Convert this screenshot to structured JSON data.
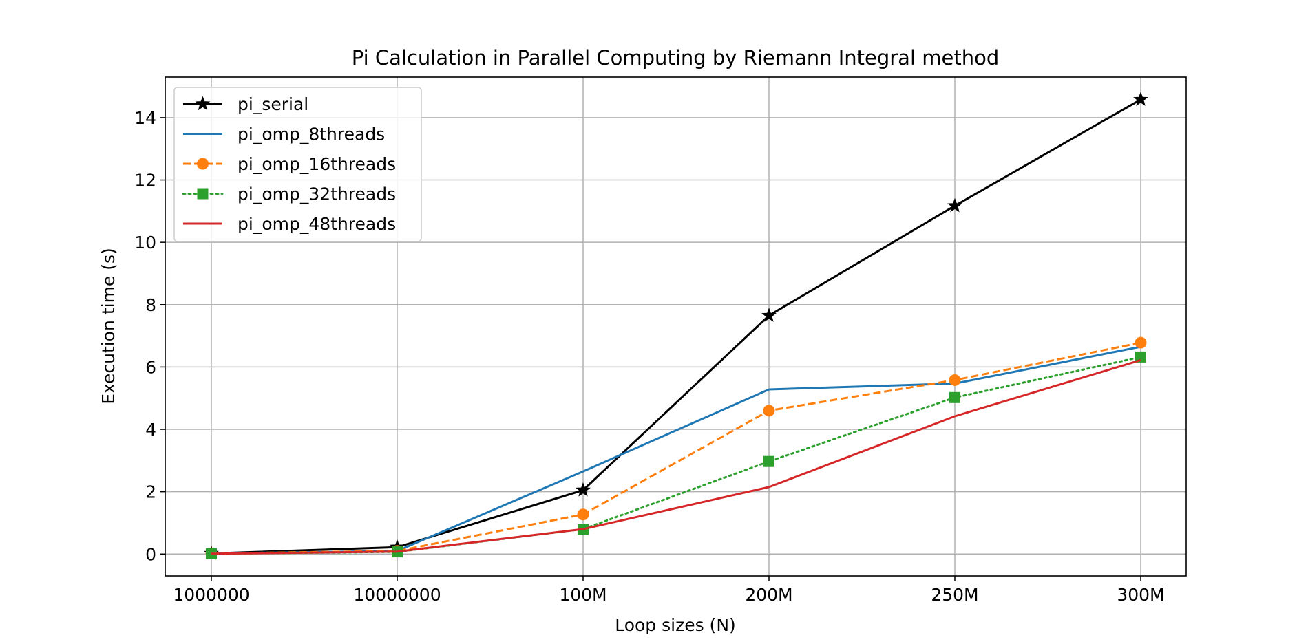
{
  "chart_data": {
    "type": "line",
    "title": "Pi Calculation in Parallel Computing by Riemann Integral method",
    "xlabel": "Loop sizes (N)",
    "ylabel": "Execution time (s)",
    "categories": [
      "1000000",
      "10000000",
      "100M",
      "200M",
      "250M",
      "300M"
    ],
    "yticks": [
      "0",
      "2",
      "4",
      "6",
      "8",
      "10",
      "12",
      "14"
    ],
    "ylim": [
      -0.7,
      15.3
    ],
    "grid": true,
    "legend_position": "top-left",
    "series": [
      {
        "name": "pi_serial",
        "values": [
          0.02,
          0.22,
          2.05,
          7.65,
          11.17,
          14.58
        ],
        "color": "#000000",
        "dash": "solid",
        "marker": "star"
      },
      {
        "name": "pi_omp_8threads",
        "values": [
          0.02,
          0.1,
          2.65,
          5.28,
          5.47,
          6.65
        ],
        "color": "#1f77b4",
        "dash": "solid",
        "marker": "none"
      },
      {
        "name": "pi_omp_16threads",
        "values": [
          0.02,
          0.1,
          1.27,
          4.6,
          5.58,
          6.78
        ],
        "color": "#ff7f0e",
        "dash": "dashed",
        "marker": "circle"
      },
      {
        "name": "pi_omp_32threads",
        "values": [
          0.01,
          0.07,
          0.8,
          2.97,
          5.02,
          6.32
        ],
        "color": "#2ca02c",
        "dash": "dotted",
        "marker": "square"
      },
      {
        "name": "pi_omp_48threads",
        "values": [
          0.01,
          0.08,
          0.8,
          2.15,
          4.42,
          6.22
        ],
        "color": "#d62728",
        "dash": "solid",
        "marker": "none"
      }
    ]
  }
}
